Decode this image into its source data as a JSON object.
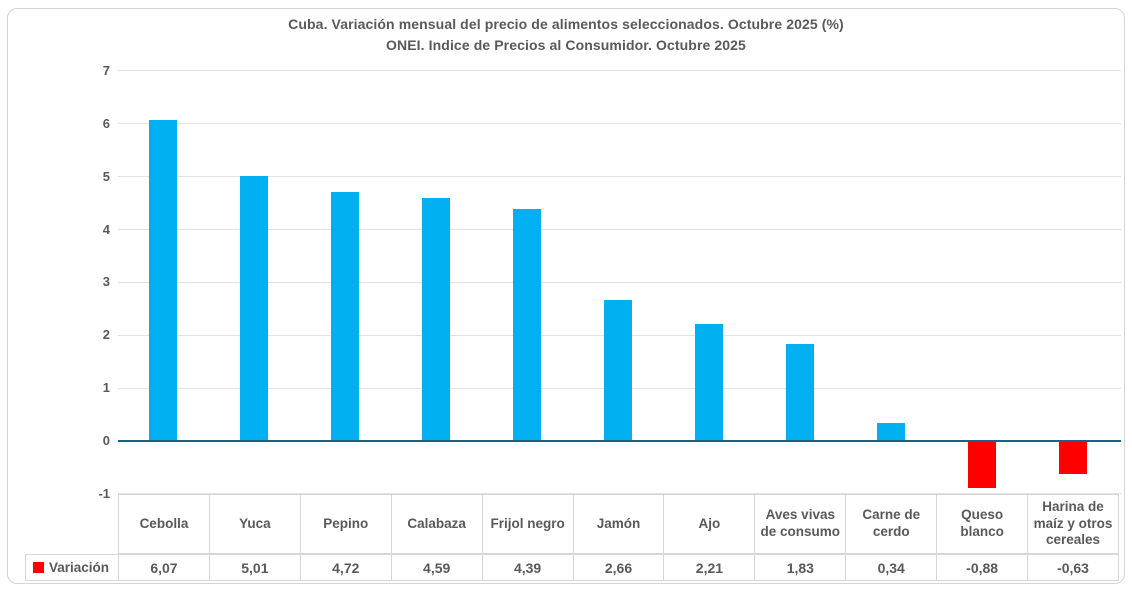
{
  "chart_data": {
    "type": "bar",
    "title": "Cuba. Variación mensual del precio de alimentos seleccionados. Octubre 2025 (%)",
    "subtitle": "ONEI. Indice de Precios al Consumidor. Octubre 2025",
    "categories": [
      "Cebolla",
      "Yuca",
      "Pepino",
      "Calabaza",
      "Frijol negro",
      "Jamón",
      "Ajo",
      "Aves vivas de consumo",
      "Carne de cerdo",
      "Queso blanco",
      "Harina de maíz y otros cereales"
    ],
    "series": [
      {
        "name": "Variación",
        "values": [
          6.07,
          5.01,
          4.72,
          4.59,
          4.39,
          2.66,
          2.21,
          1.83,
          0.34,
          -0.88,
          -0.63
        ],
        "value_labels": [
          "6,07",
          "5,01",
          "4,72",
          "4,59",
          "4,39",
          "2,66",
          "2,21",
          "1,83",
          "0,34",
          "-0,88",
          "-0,63"
        ]
      }
    ],
    "ylabel": "",
    "xlabel": "",
    "ylim": [
      -1,
      7
    ],
    "yticks": [
      7,
      6,
      5,
      4,
      3,
      2,
      1,
      0,
      "-1"
    ],
    "grid": true,
    "legend_position": "data-table-bottom-left",
    "legend_label": "Variación",
    "colors": {
      "positive_bar": "#00b0f0",
      "negative_bar": "#ff0000",
      "legend_marker": "#ff0000",
      "zero_axis_line": "#1a608c",
      "gridline": "#e2e2e2",
      "text": "#595959",
      "table_border": "#d6d6d6",
      "frame_border": "#d4d4d4"
    }
  }
}
